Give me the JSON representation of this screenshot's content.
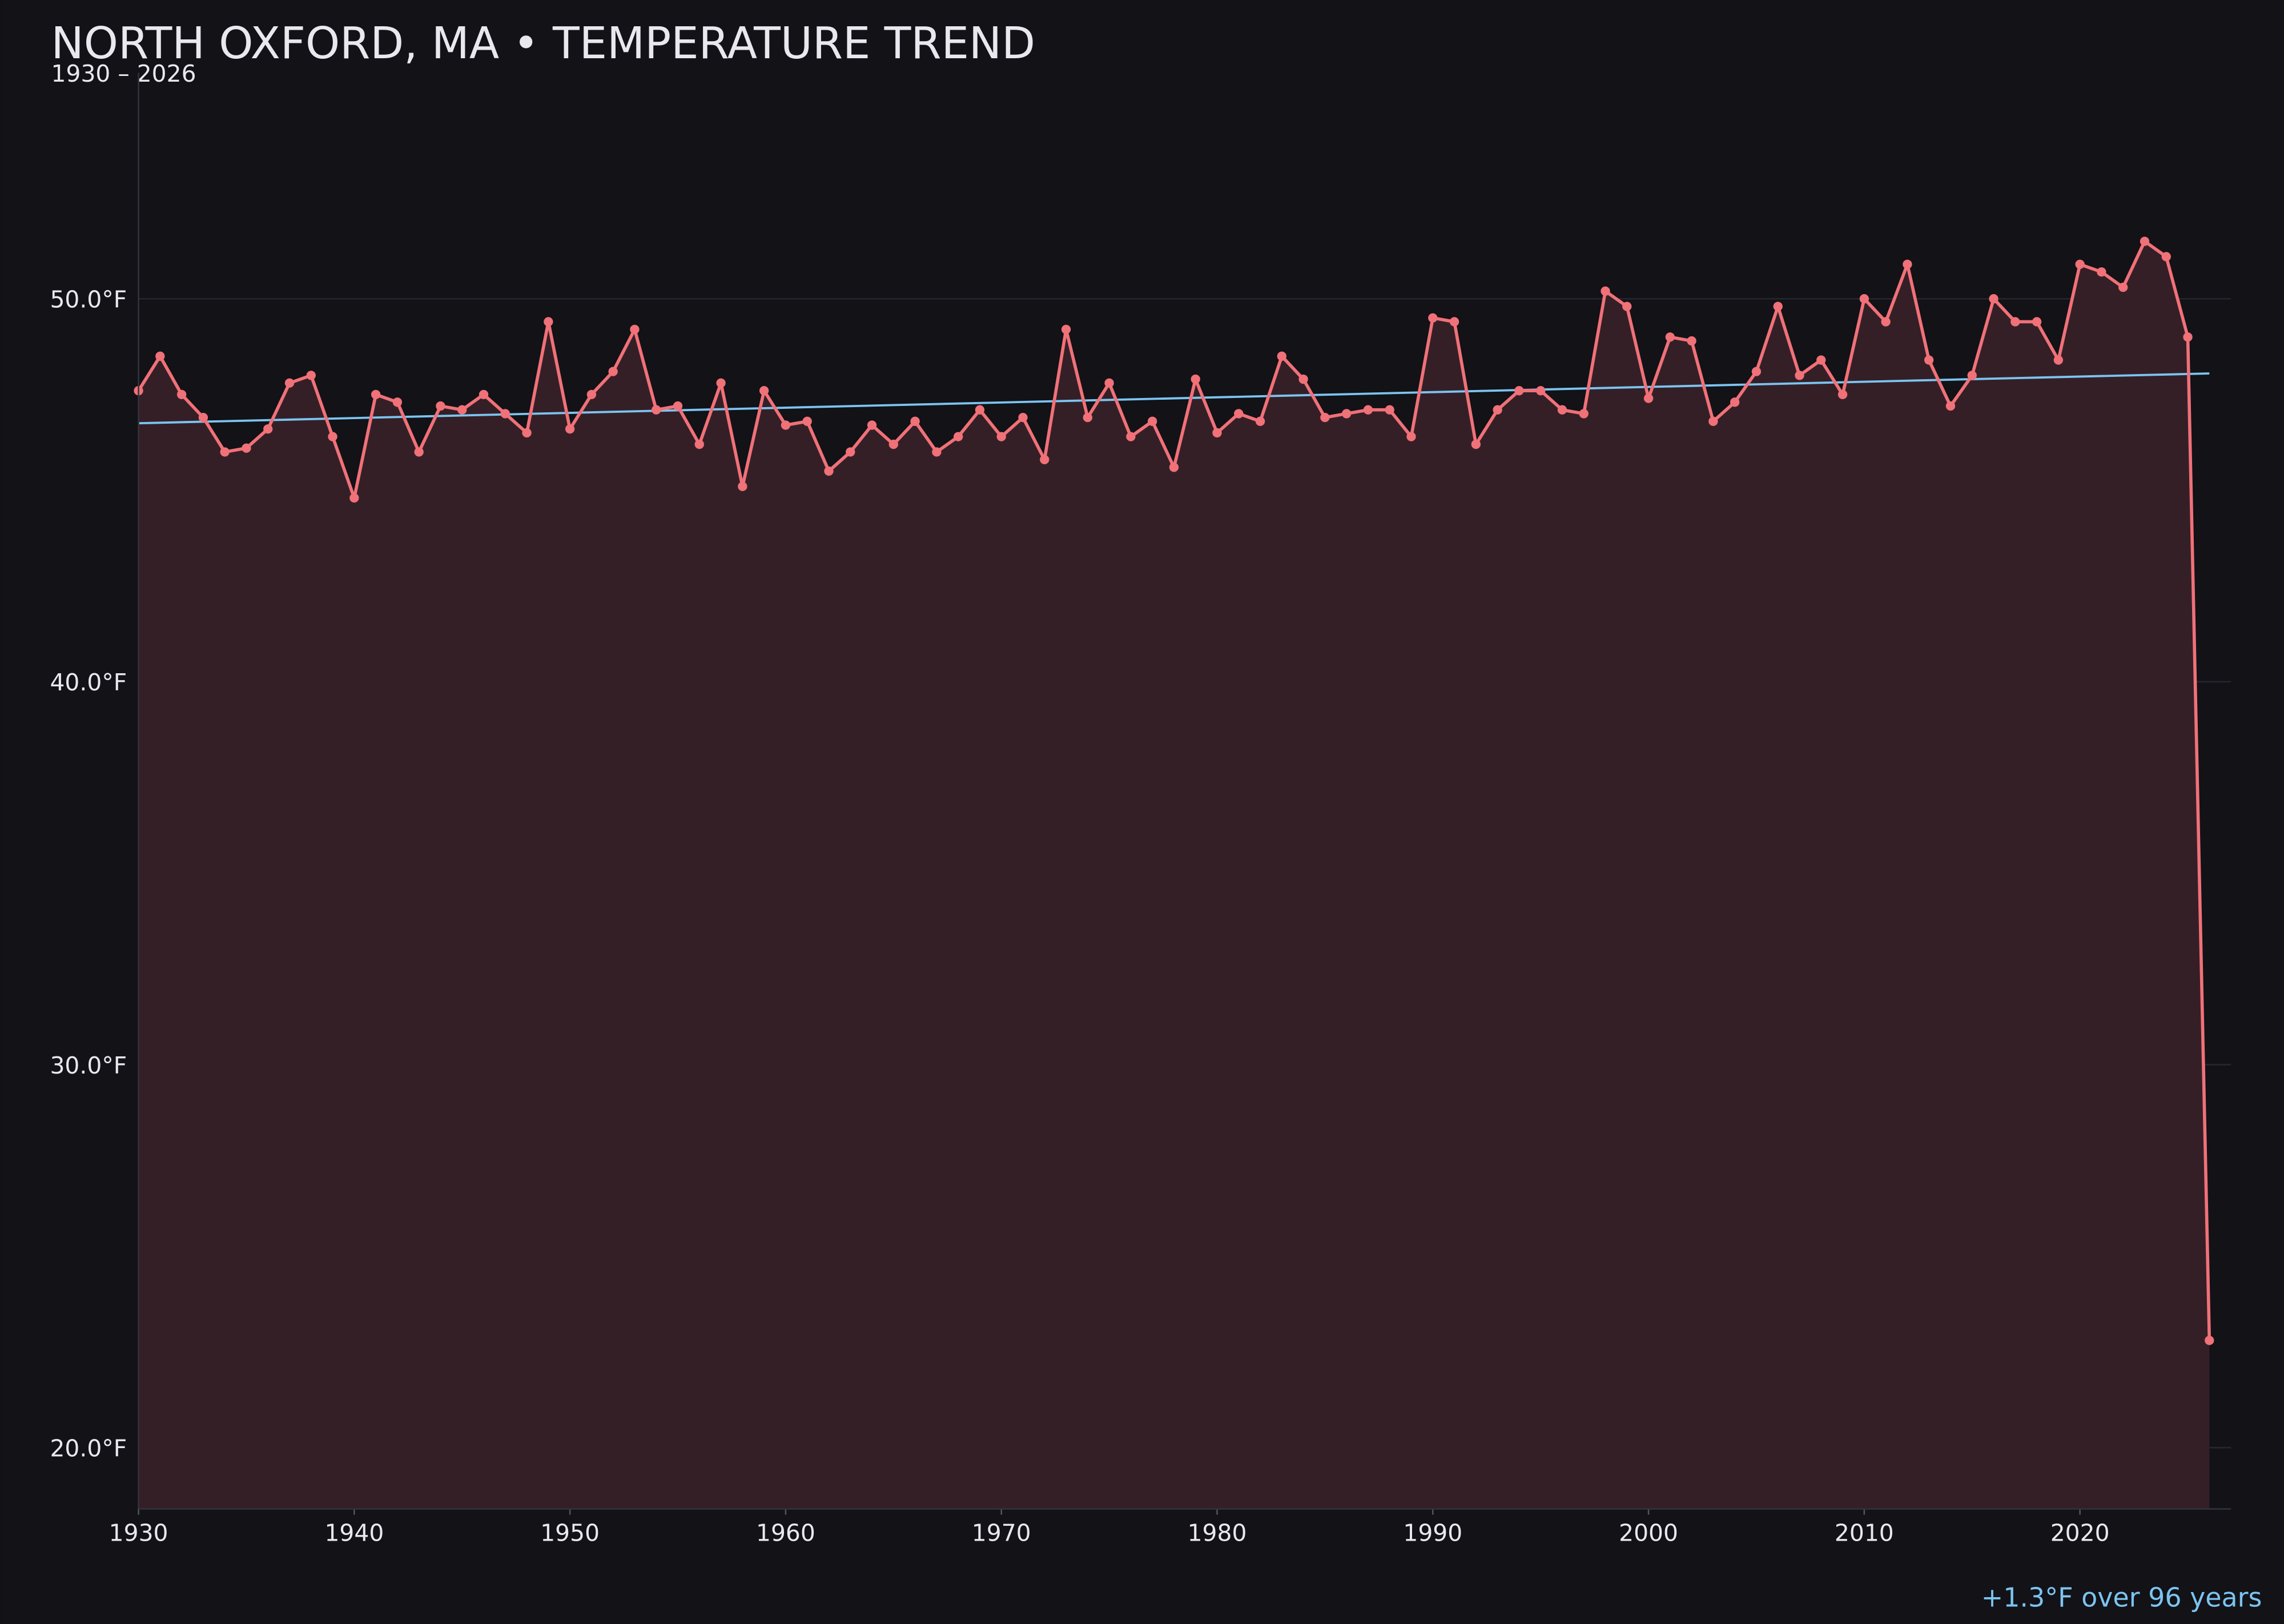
{
  "chart_data": {
    "type": "line",
    "title": "NORTH OXFORD, MA • TEMPERATURE TREND",
    "subtitle": "1930 – 2026",
    "annotation": "+1.3°F over 96 years",
    "x": [
      1930,
      1931,
      1932,
      1933,
      1934,
      1935,
      1936,
      1937,
      1938,
      1939,
      1940,
      1941,
      1942,
      1943,
      1944,
      1945,
      1946,
      1947,
      1948,
      1949,
      1950,
      1951,
      1952,
      1953,
      1954,
      1955,
      1956,
      1957,
      1958,
      1959,
      1960,
      1961,
      1962,
      1963,
      1964,
      1965,
      1966,
      1967,
      1968,
      1969,
      1970,
      1971,
      1972,
      1973,
      1974,
      1975,
      1976,
      1977,
      1978,
      1979,
      1980,
      1981,
      1982,
      1983,
      1984,
      1985,
      1986,
      1987,
      1988,
      1989,
      1990,
      1991,
      1992,
      1993,
      1994,
      1995,
      1996,
      1997,
      1998,
      1999,
      2000,
      2001,
      2002,
      2003,
      2004,
      2005,
      2006,
      2007,
      2008,
      2009,
      2010,
      2011,
      2012,
      2013,
      2014,
      2015,
      2016,
      2017,
      2018,
      2019,
      2020,
      2021,
      2022,
      2023,
      2024,
      2025,
      2026
    ],
    "values": [
      47.6,
      48.5,
      47.5,
      46.9,
      46.0,
      46.1,
      46.6,
      47.8,
      48.0,
      46.4,
      44.8,
      47.5,
      47.3,
      46.0,
      47.2,
      47.1,
      47.5,
      47.0,
      46.5,
      49.4,
      46.6,
      47.5,
      48.1,
      49.2,
      47.1,
      47.2,
      46.2,
      47.8,
      45.1,
      47.6,
      46.7,
      46.8,
      45.5,
      46.0,
      46.7,
      46.2,
      46.8,
      46.0,
      46.4,
      47.1,
      46.4,
      46.9,
      45.8,
      49.2,
      46.9,
      47.8,
      46.4,
      46.8,
      45.6,
      47.9,
      46.5,
      47.0,
      46.8,
      48.5,
      47.9,
      46.9,
      47.0,
      47.1,
      47.1,
      46.4,
      49.5,
      49.4,
      46.2,
      47.1,
      47.6,
      47.6,
      47.1,
      47.0,
      50.2,
      49.8,
      47.4,
      49.0,
      48.9,
      46.8,
      47.3,
      48.1,
      49.8,
      48.0,
      48.4,
      47.5,
      50.0,
      49.4,
      50.9,
      48.4,
      47.2,
      48.0,
      50.0,
      49.4,
      49.4,
      48.4,
      50.9,
      50.7,
      50.3,
      51.5,
      51.1,
      49.0,
      22.8
    ],
    "color": "#f07178",
    "fill_color": "#351f27",
    "trend": {
      "x": [
        1930,
        2026
      ],
      "values": [
        46.75,
        48.05
      ],
      "color": "#7cc4f0"
    },
    "xlim": [
      1930,
      2027
    ],
    "ylim": [
      18.4,
      55.9
    ],
    "xticks": [
      1930,
      1940,
      1950,
      1960,
      1970,
      1980,
      1990,
      2000,
      2010,
      2020
    ],
    "yticks": [
      {
        "value": 20,
        "label": "20.0°F"
      },
      {
        "value": 30,
        "label": "30.0°F"
      },
      {
        "value": 40,
        "label": "40.0°F"
      },
      {
        "value": 50,
        "label": "50.0°F"
      }
    ],
    "grid": true
  }
}
